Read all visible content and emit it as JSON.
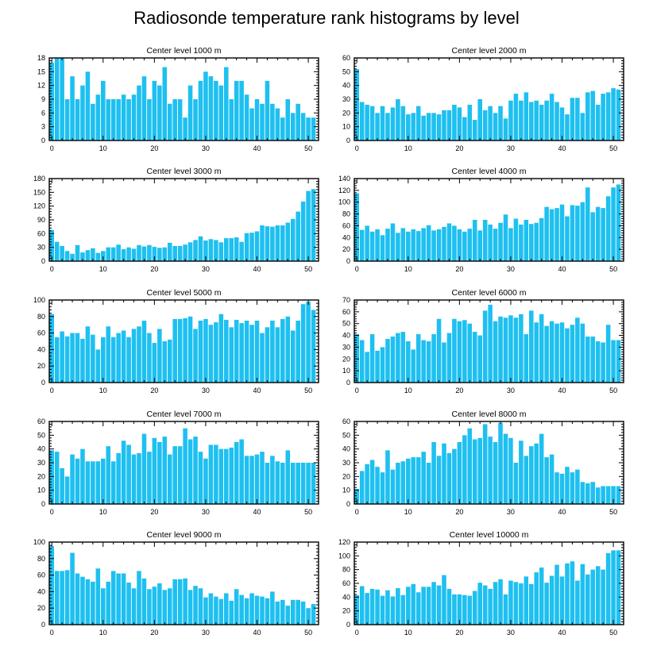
{
  "figure": {
    "title": "Radiosonde temperature rank histograms by level",
    "bar_color": "#1ec0f0"
  },
  "chart_data": [
    {
      "type": "bar",
      "title": "Center level 1000 m",
      "x": [
        0,
        1,
        2,
        3,
        4,
        5,
        6,
        7,
        8,
        9,
        10,
        11,
        12,
        13,
        14,
        15,
        16,
        17,
        18,
        19,
        20,
        21,
        22,
        23,
        24,
        25,
        26,
        27,
        28,
        29,
        30,
        31,
        32,
        33,
        34,
        35,
        36,
        37,
        38,
        39,
        40,
        41,
        42,
        43,
        44,
        45,
        46,
        47,
        48,
        49,
        50,
        51
      ],
      "values": [
        17,
        18,
        18,
        9,
        14,
        9,
        12,
        15,
        8,
        10,
        13,
        9,
        9,
        9,
        10,
        9,
        10,
        12,
        14,
        9,
        13,
        12,
        16,
        8,
        9,
        9,
        5,
        12,
        9,
        13,
        15,
        14,
        13,
        12,
        16,
        9,
        13,
        13,
        10,
        7,
        9,
        8,
        13,
        8,
        7,
        5,
        9,
        6,
        8,
        6,
        5,
        5
      ],
      "xlim": [
        -0.5,
        52
      ],
      "ylim": [
        0,
        18
      ],
      "xticks": [
        0,
        10,
        20,
        30,
        40,
        50
      ],
      "yticks": [
        0,
        3,
        6,
        9,
        12,
        15,
        18
      ],
      "ytick_side": "left"
    },
    {
      "type": "bar",
      "title": "Center level 2000 m",
      "x": [
        0,
        1,
        2,
        3,
        4,
        5,
        6,
        7,
        8,
        9,
        10,
        11,
        12,
        13,
        14,
        15,
        16,
        17,
        18,
        19,
        20,
        21,
        22,
        23,
        24,
        25,
        26,
        27,
        28,
        29,
        30,
        31,
        32,
        33,
        34,
        35,
        36,
        37,
        38,
        39,
        40,
        41,
        42,
        43,
        44,
        45,
        46,
        47,
        48,
        49,
        50,
        51
      ],
      "values": [
        52,
        28,
        26,
        25,
        20,
        25,
        20,
        24,
        30,
        25,
        19,
        20,
        25,
        18,
        20,
        20,
        19,
        22,
        22,
        26,
        24,
        17,
        26,
        15,
        30,
        22,
        25,
        20,
        25,
        16,
        29,
        34,
        29,
        35,
        28,
        29,
        26,
        29,
        34,
        28,
        24,
        19,
        31,
        31,
        20,
        35,
        36,
        26,
        34,
        35,
        38,
        37
      ],
      "xlim": [
        -0.5,
        52
      ],
      "ylim": [
        0,
        60
      ],
      "xticks": [
        0,
        10,
        20,
        30,
        40,
        50
      ],
      "yticks": [
        0,
        10,
        20,
        30,
        40,
        50,
        60
      ],
      "ytick_side": "left"
    },
    {
      "type": "bar",
      "title": "Center level 3000 m",
      "x": [
        0,
        1,
        2,
        3,
        4,
        5,
        6,
        7,
        8,
        9,
        10,
        11,
        12,
        13,
        14,
        15,
        16,
        17,
        18,
        19,
        20,
        21,
        22,
        23,
        24,
        25,
        26,
        27,
        28,
        29,
        30,
        31,
        32,
        33,
        34,
        35,
        36,
        37,
        38,
        39,
        40,
        41,
        42,
        43,
        44,
        45,
        46,
        47,
        48,
        49,
        50,
        51
      ],
      "values": [
        68,
        42,
        33,
        22,
        16,
        35,
        19,
        24,
        28,
        18,
        22,
        30,
        30,
        36,
        26,
        30,
        27,
        35,
        32,
        35,
        31,
        29,
        30,
        40,
        33,
        33,
        36,
        41,
        46,
        54,
        45,
        48,
        46,
        41,
        50,
        50,
        52,
        42,
        61,
        62,
        65,
        78,
        76,
        75,
        78,
        78,
        84,
        92,
        108,
        130,
        153,
        157
      ],
      "xlim": [
        -0.5,
        52
      ],
      "ylim": [
        0,
        180
      ],
      "xticks": [
        0,
        10,
        20,
        30,
        40,
        50
      ],
      "yticks": [
        0,
        30,
        60,
        90,
        120,
        150,
        180
      ],
      "ytick_side": "left"
    },
    {
      "type": "bar",
      "title": "Center level 4000 m",
      "x": [
        0,
        1,
        2,
        3,
        4,
        5,
        6,
        7,
        8,
        9,
        10,
        11,
        12,
        13,
        14,
        15,
        16,
        17,
        18,
        19,
        20,
        21,
        22,
        23,
        24,
        25,
        26,
        27,
        28,
        29,
        30,
        31,
        32,
        33,
        34,
        35,
        36,
        37,
        38,
        39,
        40,
        41,
        42,
        43,
        44,
        45,
        46,
        47,
        48,
        49,
        50,
        51
      ],
      "values": [
        115,
        53,
        60,
        50,
        54,
        44,
        55,
        64,
        48,
        56,
        50,
        54,
        51,
        56,
        61,
        52,
        54,
        58,
        64,
        60,
        54,
        50,
        55,
        70,
        52,
        70,
        62,
        55,
        65,
        79,
        56,
        72,
        62,
        70,
        63,
        65,
        73,
        92,
        88,
        90,
        96,
        76,
        95,
        94,
        100,
        125,
        83,
        92,
        90,
        110,
        125,
        130
      ],
      "xlim": [
        -0.5,
        52
      ],
      "ylim": [
        0,
        140
      ],
      "xticks": [
        0,
        10,
        20,
        30,
        40,
        50
      ],
      "yticks": [
        0,
        20,
        40,
        60,
        80,
        100,
        120,
        140
      ],
      "ytick_side": "left"
    },
    {
      "type": "bar",
      "title": "Center level 5000 m",
      "x": [
        0,
        1,
        2,
        3,
        4,
        5,
        6,
        7,
        8,
        9,
        10,
        11,
        12,
        13,
        14,
        15,
        16,
        17,
        18,
        19,
        20,
        21,
        22,
        23,
        24,
        25,
        26,
        27,
        28,
        29,
        30,
        31,
        32,
        33,
        34,
        35,
        36,
        37,
        38,
        39,
        40,
        41,
        42,
        43,
        44,
        45,
        46,
        47,
        48,
        49,
        50,
        51
      ],
      "values": [
        83,
        55,
        62,
        56,
        60,
        60,
        53,
        68,
        58,
        40,
        55,
        68,
        55,
        60,
        63,
        55,
        65,
        68,
        75,
        60,
        48,
        65,
        50,
        52,
        77,
        77,
        78,
        80,
        65,
        75,
        77,
        70,
        73,
        83,
        76,
        67,
        76,
        72,
        75,
        70,
        75,
        60,
        67,
        75,
        67,
        77,
        80,
        63,
        75,
        95,
        98,
        88
      ],
      "xlim": [
        -0.5,
        52
      ],
      "ylim": [
        0,
        100
      ],
      "xticks": [
        0,
        10,
        20,
        30,
        40,
        50
      ],
      "yticks": [
        0,
        20,
        40,
        60,
        80,
        100
      ],
      "ytick_side": "left"
    },
    {
      "type": "bar",
      "title": "Center level 6000 m",
      "x": [
        0,
        1,
        2,
        3,
        4,
        5,
        6,
        7,
        8,
        9,
        10,
        11,
        12,
        13,
        14,
        15,
        16,
        17,
        18,
        19,
        20,
        21,
        22,
        23,
        24,
        25,
        26,
        27,
        28,
        29,
        30,
        31,
        32,
        33,
        34,
        35,
        36,
        37,
        38,
        39,
        40,
        41,
        42,
        43,
        44,
        45,
        46,
        47,
        48,
        49,
        50,
        51
      ],
      "values": [
        41,
        36,
        26,
        41,
        27,
        30,
        37,
        39,
        42,
        43,
        35,
        28,
        41,
        36,
        35,
        41,
        54,
        34,
        42,
        54,
        52,
        53,
        50,
        43,
        40,
        61,
        66,
        52,
        56,
        55,
        57,
        55,
        58,
        41,
        61,
        51,
        58,
        48,
        52,
        50,
        51,
        46,
        49,
        55,
        50,
        39,
        39,
        35,
        34,
        49,
        36,
        36
      ],
      "xlim": [
        -0.5,
        52
      ],
      "ylim": [
        0,
        70
      ],
      "xticks": [
        0,
        10,
        20,
        30,
        40,
        50
      ],
      "yticks": [
        0,
        10,
        20,
        30,
        40,
        50,
        60,
        70
      ],
      "ytick_side": "left"
    },
    {
      "type": "bar",
      "title": "Center level 7000 m",
      "x": [
        0,
        1,
        2,
        3,
        4,
        5,
        6,
        7,
        8,
        9,
        10,
        11,
        12,
        13,
        14,
        15,
        16,
        17,
        18,
        19,
        20,
        21,
        22,
        23,
        24,
        25,
        26,
        27,
        28,
        29,
        30,
        31,
        32,
        33,
        34,
        35,
        36,
        37,
        38,
        39,
        40,
        41,
        42,
        43,
        44,
        45,
        46,
        47,
        48,
        49,
        50,
        51
      ],
      "values": [
        39,
        38,
        26,
        20,
        36,
        33,
        40,
        31,
        31,
        31,
        33,
        42,
        31,
        37,
        46,
        43,
        36,
        37,
        51,
        38,
        48,
        45,
        49,
        36,
        42,
        42,
        55,
        47,
        49,
        38,
        33,
        43,
        43,
        40,
        40,
        41,
        45,
        47,
        35,
        35,
        36,
        38,
        30,
        35,
        31,
        30,
        39,
        30,
        30,
        30,
        30,
        30
      ],
      "xlim": [
        -0.5,
        52
      ],
      "ylim": [
        0,
        60
      ],
      "xticks": [
        0,
        10,
        20,
        30,
        40,
        50
      ],
      "yticks": [
        0,
        10,
        20,
        30,
        40,
        50,
        60
      ],
      "ytick_side": "left"
    },
    {
      "type": "bar",
      "title": "Center level 8000 m",
      "x": [
        0,
        1,
        2,
        3,
        4,
        5,
        6,
        7,
        8,
        9,
        10,
        11,
        12,
        13,
        14,
        15,
        16,
        17,
        18,
        19,
        20,
        21,
        22,
        23,
        24,
        25,
        26,
        27,
        28,
        29,
        30,
        31,
        32,
        33,
        34,
        35,
        36,
        37,
        38,
        39,
        40,
        41,
        42,
        43,
        44,
        45,
        46,
        47,
        48,
        49,
        50,
        51
      ],
      "values": [
        11,
        24,
        29,
        32,
        27,
        23,
        39,
        25,
        30,
        31,
        33,
        34,
        34,
        38,
        30,
        45,
        35,
        44,
        37,
        40,
        45,
        50,
        55,
        47,
        48,
        58,
        49,
        45,
        59,
        51,
        48,
        30,
        46,
        35,
        42,
        44,
        51,
        34,
        36,
        23,
        22,
        27,
        23,
        25,
        16,
        15,
        16,
        12,
        13,
        13,
        13,
        13
      ],
      "xlim": [
        -0.5,
        52
      ],
      "ylim": [
        0,
        60
      ],
      "xticks": [
        0,
        10,
        20,
        30,
        40,
        50
      ],
      "yticks": [
        0,
        10,
        20,
        30,
        40,
        50,
        60
      ],
      "ytick_side": "left"
    },
    {
      "type": "bar",
      "title": "Center level 9000 m",
      "x": [
        0,
        1,
        2,
        3,
        4,
        5,
        6,
        7,
        8,
        9,
        10,
        11,
        12,
        13,
        14,
        15,
        16,
        17,
        18,
        19,
        20,
        21,
        22,
        23,
        24,
        25,
        26,
        27,
        28,
        29,
        30,
        31,
        32,
        33,
        34,
        35,
        36,
        37,
        38,
        39,
        40,
        41,
        42,
        43,
        44,
        45,
        46,
        47,
        48,
        49,
        50,
        51
      ],
      "values": [
        95,
        65,
        65,
        66,
        87,
        62,
        58,
        55,
        52,
        68,
        44,
        52,
        65,
        62,
        62,
        51,
        44,
        65,
        56,
        43,
        46,
        50,
        42,
        44,
        55,
        55,
        56,
        42,
        47,
        44,
        33,
        38,
        34,
        31,
        38,
        29,
        43,
        36,
        32,
        38,
        35,
        34,
        32,
        40,
        28,
        30,
        23,
        30,
        30,
        28,
        20,
        25
      ],
      "xlim": [
        -0.5,
        52
      ],
      "ylim": [
        0,
        100
      ],
      "xticks": [
        0,
        10,
        20,
        30,
        40,
        50
      ],
      "yticks": [
        0,
        20,
        40,
        60,
        80,
        100
      ],
      "ytick_side": "left"
    },
    {
      "type": "bar",
      "title": "Center level 10000 m",
      "x": [
        0,
        1,
        2,
        3,
        4,
        5,
        6,
        7,
        8,
        9,
        10,
        11,
        12,
        13,
        14,
        15,
        16,
        17,
        18,
        19,
        20,
        21,
        22,
        23,
        24,
        25,
        26,
        27,
        28,
        29,
        30,
        31,
        32,
        33,
        34,
        35,
        36,
        37,
        38,
        39,
        40,
        41,
        42,
        43,
        44,
        45,
        46,
        47,
        48,
        49,
        50,
        51
      ],
      "values": [
        43,
        56,
        46,
        52,
        51,
        42,
        50,
        41,
        53,
        43,
        55,
        59,
        47,
        55,
        55,
        62,
        57,
        72,
        52,
        44,
        44,
        43,
        42,
        49,
        61,
        57,
        52,
        62,
        66,
        44,
        64,
        62,
        60,
        70,
        59,
        76,
        83,
        61,
        71,
        87,
        70,
        89,
        92,
        64,
        88,
        73,
        80,
        85,
        80,
        104,
        108,
        108
      ],
      "xlim": [
        -0.5,
        52
      ],
      "ylim": [
        0,
        120
      ],
      "xticks": [
        0,
        10,
        20,
        30,
        40,
        50
      ],
      "yticks": [
        0,
        20,
        40,
        60,
        80,
        100,
        120
      ],
      "ytick_side": "left"
    }
  ]
}
